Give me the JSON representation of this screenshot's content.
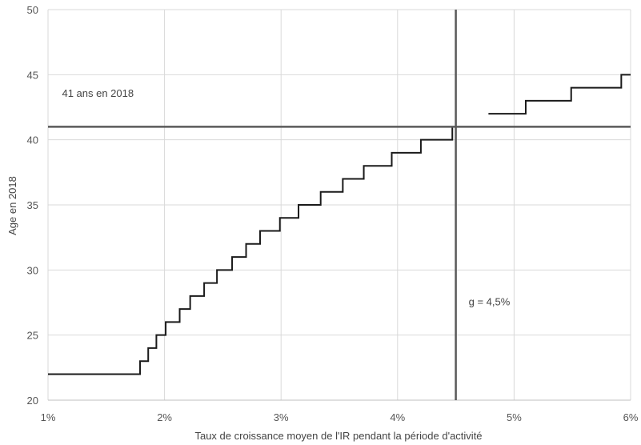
{
  "chart_data": {
    "type": "line",
    "title": "",
    "xlabel": "Taux de croissance moyen de l'IR pendant la période d'activité",
    "ylabel": "Age en 2018",
    "xlim": [
      0.01,
      0.06
    ],
    "ylim": [
      20,
      50
    ],
    "grid": true,
    "x_ticks": [
      0.01,
      0.02,
      0.03,
      0.04,
      0.05,
      0.06
    ],
    "x_tick_labels": [
      "1%",
      "2%",
      "3%",
      "4%",
      "5%",
      "6%"
    ],
    "y_ticks": [
      20,
      25,
      30,
      35,
      40,
      45,
      50
    ],
    "y_tick_labels": [
      "20",
      "25",
      "30",
      "35",
      "40",
      "45",
      "50"
    ],
    "series": [
      {
        "step": "post",
        "x": [
          0.01,
          0.0179,
          0.0186,
          0.0193,
          0.0201,
          0.0213,
          0.0222,
          0.0234,
          0.0245,
          0.0258,
          0.027,
          0.0282,
          0.0299,
          0.0315,
          0.0334,
          0.0353,
          0.0371,
          0.0395,
          0.042,
          0.0447
        ],
        "y": [
          22,
          23,
          24,
          25,
          26,
          27,
          28,
          29,
          30,
          31,
          32,
          33,
          34,
          35,
          36,
          37,
          38,
          39,
          40,
          41
        ]
      },
      {
        "step": "post",
        "x": [
          0.0478,
          0.051,
          0.0549,
          0.0592,
          0.06
        ],
        "y": [
          42,
          43,
          44,
          45,
          45
        ]
      }
    ],
    "reference_lines": [
      {
        "orientation": "horizontal",
        "value": 41
      },
      {
        "orientation": "vertical",
        "value": 0.045
      }
    ],
    "annotations": [
      {
        "text": "41 ans en 2018",
        "x": 0.0112,
        "y": 43.6
      },
      {
        "text": "g = 4,5%",
        "x": 0.0461,
        "y": 27.6
      }
    ]
  }
}
